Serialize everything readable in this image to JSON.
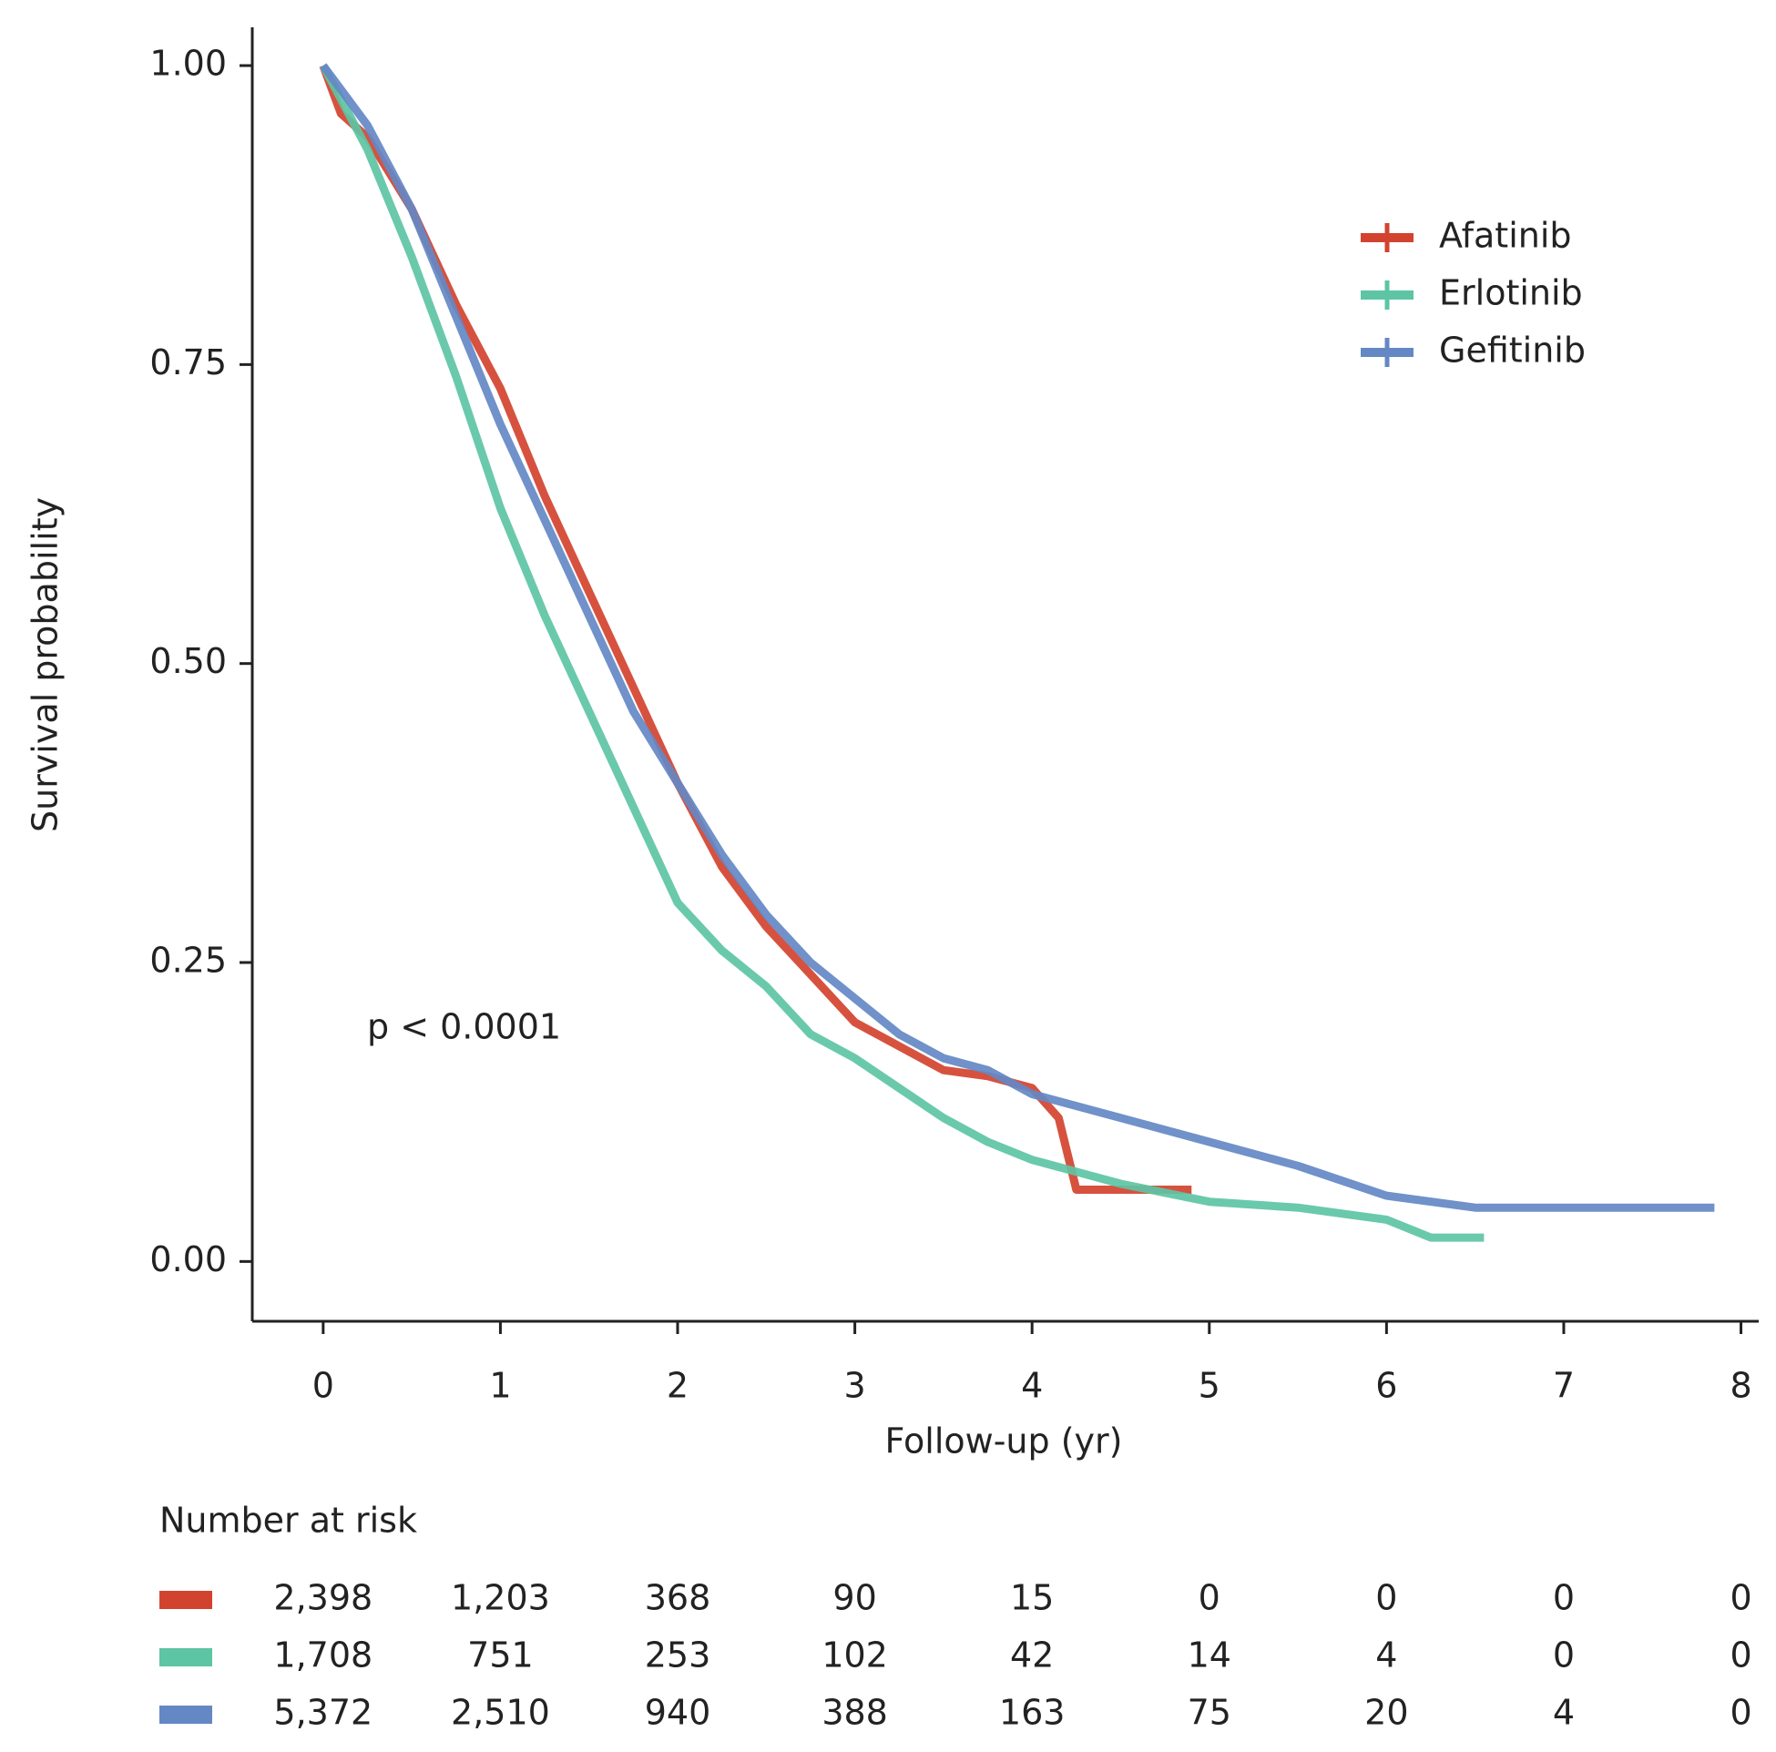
{
  "chart_data": {
    "type": "line",
    "xlabel": "Follow-up (yr)",
    "ylabel": "Survival probability",
    "annotation": "p < 0.0001",
    "xlim": [
      -0.4,
      8.1
    ],
    "ylim": [
      -0.05,
      1.032
    ],
    "xticks": [
      0,
      1,
      2,
      3,
      4,
      5,
      6,
      7,
      8
    ],
    "yticks": [
      {
        "value": 0,
        "label": "0.00"
      },
      {
        "value": 0.25,
        "label": "0.25"
      },
      {
        "value": 0.5,
        "label": "0.50"
      },
      {
        "value": 0.75,
        "label": "0.75"
      },
      {
        "value": 1,
        "label": "1.00"
      }
    ],
    "legend": "upper right",
    "series": [
      {
        "name": "Afatinib",
        "color": "#d2432f",
        "x": [
          0,
          0.1,
          0.25,
          0.5,
          0.75,
          1.0,
          1.25,
          1.5,
          1.75,
          2.0,
          2.25,
          2.5,
          2.75,
          3.0,
          3.25,
          3.5,
          3.75,
          4.0,
          4.15,
          4.25,
          4.5,
          4.9
        ],
        "values": [
          1.0,
          0.96,
          0.94,
          0.88,
          0.8,
          0.73,
          0.64,
          0.56,
          0.48,
          0.4,
          0.33,
          0.28,
          0.24,
          0.2,
          0.18,
          0.16,
          0.155,
          0.145,
          0.12,
          0.06,
          0.06,
          0.06
        ]
      },
      {
        "name": "Erlotinib",
        "color": "#5dc4a4",
        "x": [
          0,
          0.25,
          0.5,
          0.75,
          1.0,
          1.25,
          1.5,
          1.75,
          2.0,
          2.25,
          2.5,
          2.75,
          3.0,
          3.25,
          3.5,
          3.75,
          4.0,
          4.25,
          4.5,
          5.0,
          5.5,
          6.0,
          6.25,
          6.55
        ],
        "values": [
          1.0,
          0.93,
          0.84,
          0.74,
          0.63,
          0.54,
          0.46,
          0.38,
          0.3,
          0.26,
          0.23,
          0.19,
          0.17,
          0.145,
          0.12,
          0.1,
          0.085,
          0.075,
          0.065,
          0.05,
          0.045,
          0.035,
          0.02,
          0.02
        ]
      },
      {
        "name": "Gefitinib",
        "color": "#6488c4",
        "x": [
          0,
          0.25,
          0.5,
          0.75,
          1.0,
          1.25,
          1.5,
          1.75,
          2.0,
          2.25,
          2.5,
          2.75,
          3.0,
          3.25,
          3.5,
          3.75,
          4.0,
          4.5,
          5.0,
          5.5,
          6.0,
          6.5,
          7.0,
          7.85
        ],
        "values": [
          1.0,
          0.95,
          0.88,
          0.79,
          0.7,
          0.62,
          0.54,
          0.46,
          0.4,
          0.34,
          0.29,
          0.25,
          0.22,
          0.19,
          0.17,
          0.16,
          0.14,
          0.12,
          0.1,
          0.08,
          0.055,
          0.045,
          0.045,
          0.045
        ]
      }
    ],
    "risk_table": {
      "title": "Number at risk",
      "rows": [
        [
          "2,398",
          "1,203",
          "368",
          "90",
          "15",
          "0",
          "0",
          "0",
          "0"
        ],
        [
          "1,708",
          "751",
          "253",
          "102",
          "42",
          "14",
          "4",
          "0",
          "0"
        ],
        [
          "5,372",
          "2,510",
          "940",
          "388",
          "163",
          "75",
          "20",
          "4",
          "0"
        ]
      ]
    }
  }
}
